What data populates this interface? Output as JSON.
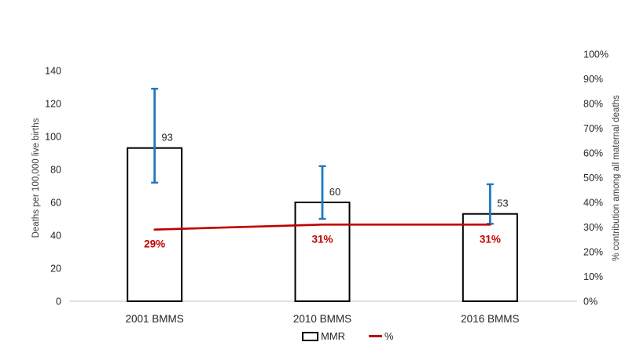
{
  "chart_data": {
    "type": "bar",
    "subtype": "bar+line combo, dual axis, error bars",
    "title": "",
    "categories": [
      "2001 BMMS",
      "2010 BMMS",
      "2016 BMMS"
    ],
    "series": [
      {
        "name": "MMR",
        "type": "bar",
        "axis": "left",
        "values": [
          93,
          60,
          53
        ],
        "data_labels": [
          "93",
          "60",
          "53"
        ],
        "error_bars": [
          {
            "low": 72,
            "high": 129
          },
          {
            "low": 50,
            "high": 82
          },
          {
            "low": 47,
            "high": 71
          }
        ]
      },
      {
        "name": "%",
        "type": "line",
        "axis": "right",
        "values": [
          29,
          31,
          31
        ],
        "data_labels": [
          "29%",
          "31%",
          "31%"
        ]
      }
    ],
    "left_axis": {
      "title": "Deaths per 100,000 live births",
      "min": 0,
      "max": 150,
      "ticks": [
        {
          "label": "0",
          "value": 0
        },
        {
          "label": "20",
          "value": 20
        },
        {
          "label": "40",
          "value": 40
        },
        {
          "label": "60",
          "value": 60
        },
        {
          "label": "80",
          "value": 80
        },
        {
          "label": "100",
          "value": 100
        },
        {
          "label": "120",
          "value": 120
        },
        {
          "label": "140",
          "value": 140
        }
      ]
    },
    "right_axis": {
      "title": "% contribution among all maternal deaths",
      "min": 0,
      "max": 100,
      "ticks": [
        {
          "label": "0%",
          "value": 0
        },
        {
          "label": "10%",
          "value": 10
        },
        {
          "label": "20%",
          "value": 20
        },
        {
          "label": "30%",
          "value": 30
        },
        {
          "label": "40%",
          "value": 40
        },
        {
          "label": "50%",
          "value": 50
        },
        {
          "label": "60%",
          "value": 60
        },
        {
          "label": "70%",
          "value": 70
        },
        {
          "label": "80%",
          "value": 80
        },
        {
          "label": "90%",
          "value": 90
        },
        {
          "label": "100%",
          "value": 100
        }
      ]
    },
    "legend": {
      "position": "bottom",
      "items": [
        {
          "label": "MMR",
          "swatch": "bar"
        },
        {
          "label": "%",
          "swatch": "line"
        }
      ]
    },
    "grid": "off",
    "colors": {
      "error_bar_blue": "#2279BE",
      "line_red": "#C00000",
      "bar_fill": "#FFFFFF",
      "bar_border": "#000000",
      "axis_line": "#D9D9D9",
      "text": "#262626",
      "axis_title_text": "#404040"
    }
  }
}
